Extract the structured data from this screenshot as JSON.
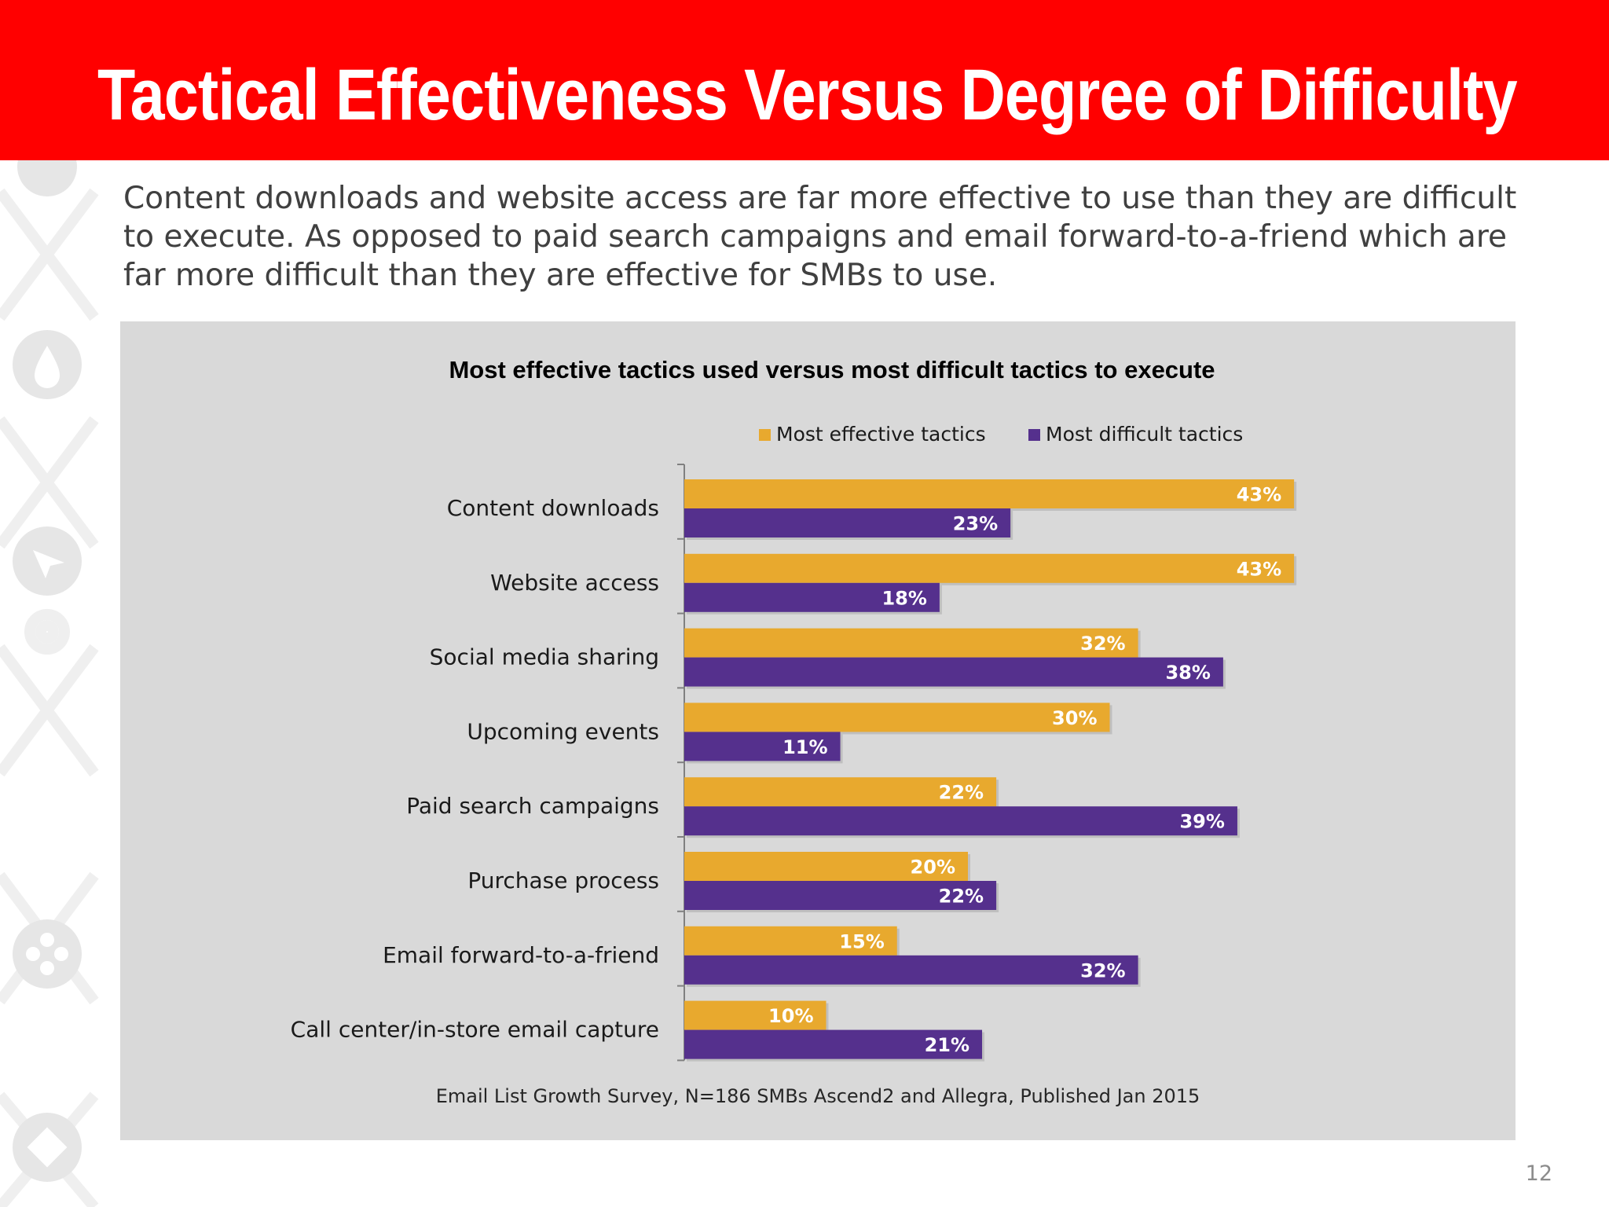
{
  "slide": {
    "title": "Tactical Effectiveness Versus Degree of Difficulty",
    "subtitle": "Content downloads and website access are far more effective to use than they are difficult to execute. As opposed to paid search campaigns and email forward-to-a-friend which are far more difficult than they are effective for SMBs to use.",
    "page_number": "12"
  },
  "colors": {
    "header": "#ff0000",
    "panel": "#d9d9d9",
    "effective": "#e8a92e",
    "difficult": "#55308d"
  },
  "chart_data": {
    "type": "bar",
    "orientation": "horizontal",
    "title": "Most effective tactics used versus most difficult tactics to execute",
    "categories": [
      "Content downloads",
      "Website access",
      "Social media sharing",
      "Upcoming events",
      "Paid search campaigns",
      "Purchase process",
      "Email forward-to-a-friend",
      "Call center/in-store email capture"
    ],
    "series": [
      {
        "name": "Most effective tactics",
        "values": [
          43,
          43,
          32,
          30,
          22,
          20,
          15,
          10
        ]
      },
      {
        "name": "Most difficult tactics",
        "values": [
          23,
          18,
          38,
          11,
          39,
          22,
          32,
          21
        ]
      }
    ],
    "value_format": "%",
    "xlim": [
      0,
      45
    ],
    "grid": false,
    "legend_position": "top",
    "source": "Email List Growth Survey, N=186 SMBs Ascend2 and Allegra, Published Jan 2015"
  }
}
